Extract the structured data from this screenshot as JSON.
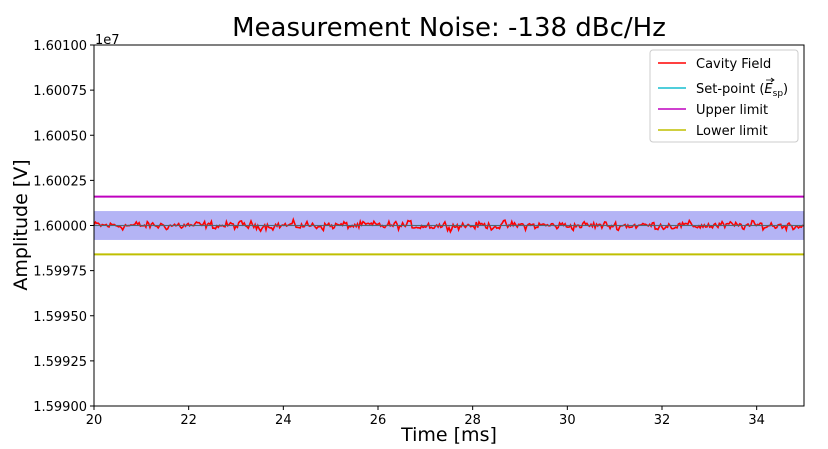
{
  "chart_data": {
    "type": "line",
    "title": "Measurement Noise: -138 dBc/Hz",
    "xlabel": "Time [ms]",
    "ylabel": "Amplitude [V]",
    "y_offset_label": "1e7",
    "xlim": [
      20,
      35
    ],
    "ylim": [
      15990000,
      16010000
    ],
    "x_ticks": [
      20,
      22,
      24,
      26,
      28,
      30,
      32,
      34
    ],
    "x_tick_labels": [
      "20",
      "22",
      "24",
      "26",
      "28",
      "30",
      "32",
      "34"
    ],
    "y_ticks": [
      15990000,
      15992500,
      15995000,
      15997500,
      16000000,
      16002500,
      16005000,
      16007500,
      16010000
    ],
    "y_tick_labels": [
      "1.59900",
      "1.59925",
      "1.59950",
      "1.59975",
      "1.60000",
      "1.60025",
      "1.60050",
      "1.60075",
      "1.60100"
    ],
    "grid": false,
    "legend_position": "top-right",
    "band": {
      "low": 15999200,
      "high": 16000800,
      "color": "#b4b4f5"
    },
    "series": [
      {
        "name": "Cavity Field",
        "color": "#ff0000",
        "kind": "noise",
        "center": 16000000,
        "amplitude": 500,
        "x_start": 20,
        "x_end": 35
      },
      {
        "name": "Set-point",
        "legend_main": "Set-point (",
        "legend_math": "E",
        "legend_sub": "sp",
        "legend_close": ")",
        "color": "#17becf",
        "kind": "hline",
        "value": 16000000
      },
      {
        "name": "Upper limit",
        "color": "#bf00bf",
        "kind": "hline",
        "value": 16001600
      },
      {
        "name": "Lower limit",
        "color": "#bfbf00",
        "kind": "hline",
        "value": 15998400
      }
    ],
    "mean_line": {
      "color": "#555555",
      "value": 16000000
    }
  }
}
